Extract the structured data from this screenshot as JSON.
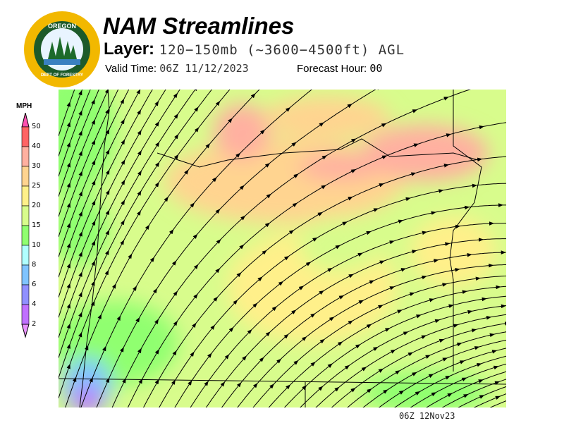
{
  "logo": {
    "text_top": "OREGON",
    "text_bottom": "DEPARTMENT OF FORESTRY"
  },
  "header": {
    "title": "NAM Streamlines",
    "layer_label": "Layer:",
    "layer_value": "120−150mb (~3600−4500ft) AGL",
    "valid_label": "Valid Time:",
    "valid_value": "06Z 11/12/2023",
    "forecast_hour_label": "Forecast Hour:",
    "forecast_hour_value": "00"
  },
  "legend": {
    "unit": "MPH",
    "levels": [
      "50",
      "40",
      "30",
      "25",
      "20",
      "15",
      "10",
      "8",
      "6",
      "4",
      "2"
    ],
    "colors": [
      "#ff6464",
      "#ffb0a0",
      "#ffd490",
      "#fff08a",
      "#d8fc8c",
      "#90ff70",
      "#b0ffff",
      "#80c4ff",
      "#9090ff",
      "#c070ff"
    ],
    "over_color": "#ff50b0",
    "under_color": "#e890ff"
  },
  "footer": {
    "timestamp": "06Z 12Nov23"
  }
}
